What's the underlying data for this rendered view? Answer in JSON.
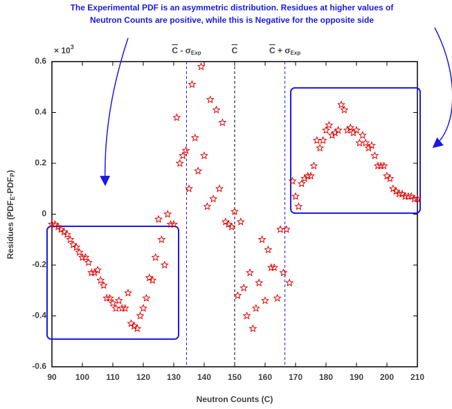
{
  "chart_data": {
    "type": "scatter",
    "title": [
      "The Experimental PDF is an asymmetric distribution. Residues at higher values of",
      "Neutron Counts are positive, while this is Negative for the opposite side"
    ],
    "x_label": "Neutron Counts (C)",
    "y_label": {
      "main": "Residues (PDF",
      "sub1": "E",
      "mid": "-PDF",
      "sub2": "P",
      "end": ")"
    },
    "y_multiplier": {
      "base": "× 10",
      "exp": "3"
    },
    "xlim": [
      90,
      210
    ],
    "xticks": [
      90,
      100,
      110,
      120,
      130,
      140,
      150,
      160,
      170,
      180,
      190,
      200,
      210
    ],
    "ylim": [
      -0.6,
      0.6
    ],
    "yticks": [
      -0.6,
      -0.4,
      -0.2,
      0,
      0.2,
      0.4,
      0.6
    ],
    "marker_color": "#e00000",
    "reference_lines": [
      {
        "x": 134.2,
        "color": "#1a1ae6",
        "label": {
          "base": "C",
          "op": " - σ",
          "sub": "Exp"
        }
      },
      {
        "x": 150,
        "color": "#000000",
        "label": {
          "base": "C"
        }
      },
      {
        "x": 166.5,
        "color": "#1a1ae6",
        "label": {
          "base": "C",
          "op": " + σ",
          "sub": "Exp"
        }
      }
    ],
    "x": [
      90,
      91,
      92,
      93,
      94,
      95,
      96,
      97,
      98,
      99,
      100,
      101,
      102,
      103,
      104,
      105,
      106,
      107,
      108,
      109,
      110,
      111,
      112,
      113,
      114,
      115,
      116,
      117,
      118,
      119,
      120,
      121,
      122,
      123,
      124,
      125,
      126,
      127,
      128,
      129,
      130,
      131,
      132,
      133,
      134,
      135,
      136,
      137,
      138,
      139,
      140,
      141,
      142,
      143,
      144,
      145,
      146,
      147,
      148,
      149,
      150,
      151,
      152,
      153,
      154,
      155,
      156,
      157,
      158,
      159,
      160,
      161,
      162,
      163,
      164,
      165,
      166,
      167,
      168,
      169,
      170,
      171,
      172,
      173,
      174,
      175,
      176,
      177,
      178,
      179,
      180,
      181,
      182,
      183,
      184,
      185,
      186,
      187,
      188,
      189,
      190,
      191,
      192,
      193,
      194,
      195,
      196,
      197,
      198,
      199,
      200,
      201,
      202,
      203,
      204,
      205,
      206,
      207,
      208,
      209,
      210
    ],
    "y": [
      -0.04,
      -0.04,
      -0.05,
      -0.06,
      -0.07,
      -0.08,
      -0.1,
      -0.12,
      -0.13,
      -0.15,
      -0.17,
      -0.17,
      -0.19,
      -0.23,
      -0.23,
      -0.22,
      -0.26,
      -0.28,
      -0.33,
      -0.33,
      -0.35,
      -0.37,
      -0.34,
      -0.37,
      -0.37,
      -0.31,
      -0.43,
      -0.44,
      -0.45,
      -0.4,
      -0.37,
      -0.33,
      -0.25,
      -0.26,
      -0.17,
      -0.02,
      -0.1,
      -0.2,
      0,
      -0.04,
      -0.04,
      0.38,
      0.2,
      0.23,
      0.25,
      0.1,
      0.51,
      0.3,
      0.17,
      0.58,
      0.23,
      0.03,
      0.45,
      0.06,
      0.41,
      0.1,
      0.36,
      -0.03,
      -0.04,
      -0.05,
      0.01,
      -0.32,
      -0.03,
      -0.29,
      -0.4,
      -0.23,
      -0.45,
      -0.37,
      -0.27,
      -0.1,
      -0.34,
      -0.14,
      -0.21,
      -0.21,
      -0.33,
      -0.06,
      -0.23,
      -0.06,
      -0.27,
      0.13,
      0.07,
      0.03,
      0.12,
      0.14,
      0.15,
      0.15,
      0.19,
      0.29,
      0.26,
      0.29,
      0.33,
      0.35,
      0.31,
      0.32,
      0.33,
      0.43,
      0.41,
      0.33,
      0.34,
      0.32,
      0.33,
      0.28,
      0.31,
      0.28,
      0.26,
      0.27,
      0.23,
      0.19,
      0.19,
      0.19,
      0.15,
      0.14,
      0.1,
      0.09,
      0.08,
      0.08,
      0.07,
      0.07,
      0.07,
      0.06,
      0.06
    ]
  }
}
